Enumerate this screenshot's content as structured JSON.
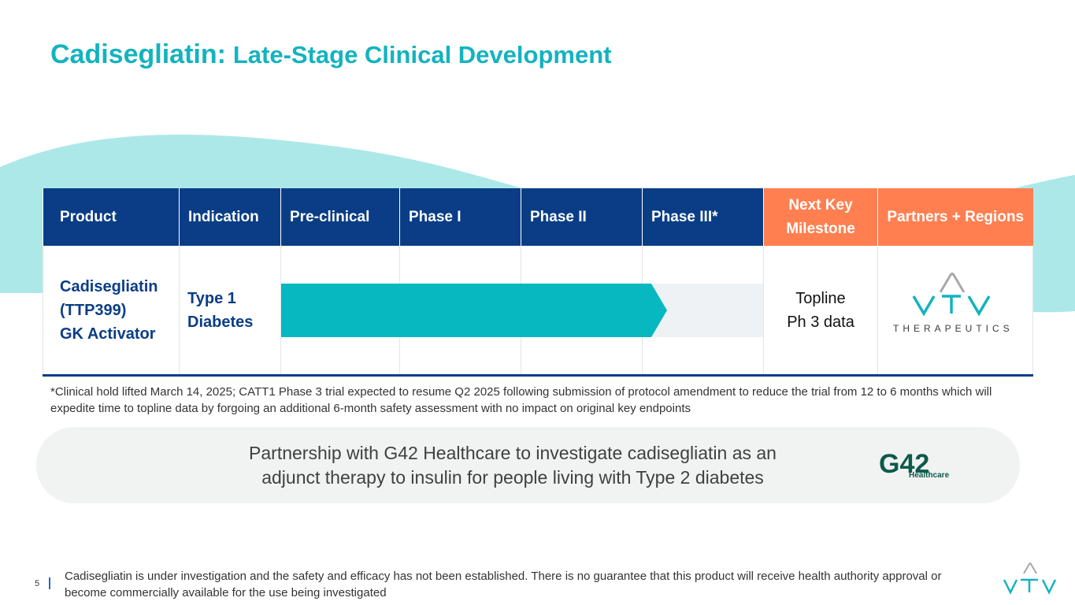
{
  "title": {
    "main": "Cadisegliatin:",
    "sub": "Late-Stage Clinical Development"
  },
  "colors": {
    "teal": "#13b3bf",
    "navy": "#0a3d86",
    "orange": "#ff7f50",
    "wave": "#ade8e9",
    "bar": "#07b8c1"
  },
  "table": {
    "headers": [
      "Product",
      "Indication",
      "Pre-clinical",
      "Phase I",
      "Phase II",
      "Phase III*",
      "Next Key Milestone",
      "Partners + Regions"
    ],
    "row": {
      "product_lines": [
        "Cadisegliatin",
        "(TTP399)",
        "GK Activator"
      ],
      "indication_lines": [
        "Type 1",
        "Diabetes"
      ],
      "milestone_lines": [
        "Topline",
        "Ph 3 data"
      ],
      "partner_logo_text": "THERAPEUTICS",
      "progress_phase": "Phase III"
    }
  },
  "footnote": "*Clinical hold lifted March 14, 2025; CATT1 Phase 3 trial expected to resume Q2 2025 following submission of protocol amendment to reduce the trial from 12 to 6 months which will expedite time to topline data by forgoing an additional 6-month safety assessment with no impact on original key endpoints",
  "partnership": {
    "text": "Partnership with G42 Healthcare to investigate cadisegliatin as an adjunct therapy to insulin for people living with Type 2 diabetes",
    "logo_main": "G42",
    "logo_sub": "Healthcare"
  },
  "footer": {
    "page_number": "5",
    "disclaimer": "Cadisegliatin is under investigation and the safety and efficacy has not been established. There is no guarantee that this product will receive health authority approval or become commercially available for the use being investigated"
  }
}
